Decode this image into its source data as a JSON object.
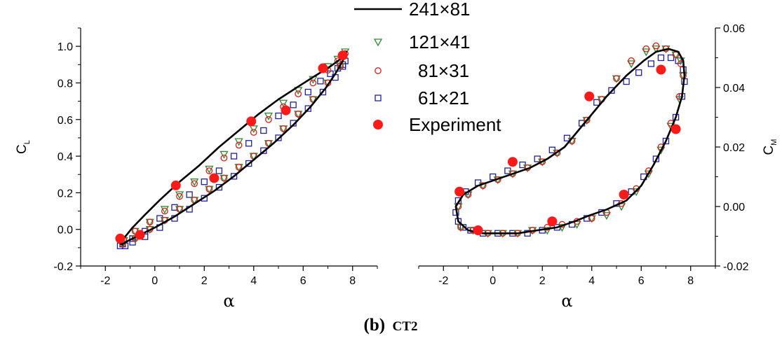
{
  "caption": {
    "label": "(b)",
    "name": "CT2"
  },
  "chart_data": [
    {
      "type": "line",
      "panel": "left",
      "xlabel": "α",
      "ylabel_main": "C",
      "ylabel_sub": "L",
      "xlim": [
        -3,
        9
      ],
      "ylim": [
        -0.2,
        1.1
      ],
      "xticks": [
        -2,
        0,
        2,
        4,
        6,
        8
      ],
      "yticks": [
        -0.2,
        0.0,
        0.2,
        0.4,
        0.6,
        0.8,
        1.0
      ],
      "ytick_labels": [
        "-0.2",
        "0.0",
        "0.2",
        "0.4",
        "0.6",
        "0.8",
        "1.0"
      ],
      "yaxis_side": "left",
      "series": [
        {
          "name": "241×81",
          "style": "line",
          "color": "#000000",
          "x": [
            -1.4,
            -1.3,
            -1.05,
            -0.6,
            0.0,
            0.8,
            1.6,
            2.4,
            3.2,
            4.0,
            4.8,
            5.6,
            6.3,
            6.9,
            7.3,
            7.6,
            7.75,
            7.7,
            7.5,
            7.1,
            6.5,
            5.8,
            5.0,
            4.2,
            3.4,
            2.6,
            1.8,
            1.0,
            0.2,
            -0.4,
            -0.9,
            -1.2,
            -1.38,
            -1.4
          ],
          "y": [
            -0.08,
            -0.08,
            -0.06,
            -0.03,
            0.01,
            0.07,
            0.14,
            0.21,
            0.29,
            0.38,
            0.47,
            0.57,
            0.67,
            0.77,
            0.85,
            0.92,
            0.97,
            0.96,
            0.93,
            0.89,
            0.84,
            0.78,
            0.71,
            0.63,
            0.54,
            0.45,
            0.35,
            0.26,
            0.16,
            0.08,
            0.01,
            -0.04,
            -0.07,
            -0.08
          ]
        },
        {
          "name": "121×41",
          "style": "marker",
          "marker": "triangle-down",
          "color": "#2e8b2e",
          "x": [
            -1.3,
            -0.8,
            -0.2,
            0.4,
            1.0,
            1.6,
            2.2,
            2.8,
            3.4,
            4.0,
            4.6,
            5.2,
            5.8,
            6.4,
            7.0,
            7.5,
            7.7,
            7.4,
            7.0,
            6.4,
            5.8,
            5.2,
            4.6,
            4.0,
            3.4,
            2.8,
            2.2,
            1.6,
            1.0,
            0.4,
            -0.2,
            -0.8,
            -1.25
          ],
          "y": [
            -0.08,
            -0.05,
            0.0,
            0.05,
            0.11,
            0.16,
            0.22,
            0.28,
            0.34,
            0.4,
            0.47,
            0.55,
            0.63,
            0.71,
            0.8,
            0.89,
            0.97,
            0.93,
            0.89,
            0.82,
            0.76,
            0.69,
            0.62,
            0.55,
            0.48,
            0.41,
            0.33,
            0.26,
            0.19,
            0.11,
            0.04,
            -0.01,
            -0.06
          ]
        },
        {
          "name": "81×31",
          "style": "marker",
          "marker": "circle-open",
          "color": "#e31a1a",
          "x": [
            -1.3,
            -0.8,
            -0.2,
            0.4,
            1.0,
            1.6,
            2.2,
            2.8,
            3.4,
            4.0,
            4.6,
            5.2,
            5.8,
            6.4,
            7.0,
            7.5,
            7.7,
            7.4,
            7.0,
            6.4,
            5.8,
            5.2,
            4.6,
            4.0,
            3.4,
            2.8,
            2.2,
            1.6,
            1.0,
            0.4,
            -0.2,
            -0.8,
            -1.25
          ],
          "y": [
            -0.08,
            -0.05,
            0.0,
            0.05,
            0.11,
            0.16,
            0.22,
            0.28,
            0.34,
            0.4,
            0.47,
            0.55,
            0.63,
            0.71,
            0.8,
            0.89,
            0.96,
            0.92,
            0.87,
            0.8,
            0.74,
            0.67,
            0.6,
            0.53,
            0.46,
            0.39,
            0.32,
            0.25,
            0.18,
            0.1,
            0.04,
            -0.01,
            -0.06
          ]
        },
        {
          "name": "61×21",
          "style": "marker",
          "marker": "square-open",
          "color": "#1f1f9e",
          "x": [
            -1.4,
            -1.2,
            -0.9,
            -0.4,
            0.2,
            0.8,
            1.4,
            2.0,
            2.6,
            3.2,
            3.8,
            4.4,
            5.0,
            5.6,
            6.2,
            6.8,
            7.3,
            7.6,
            7.7,
            7.6,
            7.4,
            7.1,
            6.7,
            6.2,
            5.6,
            5.0,
            4.4,
            3.8,
            3.2,
            2.6,
            2.0,
            1.4,
            0.8,
            0.2,
            -0.4,
            -0.9,
            -1.3
          ],
          "y": [
            -0.09,
            -0.09,
            -0.07,
            -0.04,
            0.01,
            0.06,
            0.11,
            0.17,
            0.23,
            0.29,
            0.36,
            0.43,
            0.5,
            0.58,
            0.66,
            0.75,
            0.83,
            0.89,
            0.92,
            0.9,
            0.88,
            0.85,
            0.81,
            0.75,
            0.68,
            0.62,
            0.54,
            0.47,
            0.4,
            0.32,
            0.26,
            0.19,
            0.12,
            0.06,
            -0.01,
            -0.05,
            -0.08
          ]
        },
        {
          "name": "Experiment",
          "style": "marker",
          "marker": "circle-filled",
          "color": "#ff1a1a",
          "x": [
            -1.4,
            -0.6,
            0.85,
            2.4,
            3.9,
            5.3,
            6.8,
            7.6
          ],
          "y": [
            -0.05,
            -0.03,
            0.24,
            0.28,
            0.59,
            0.65,
            0.88,
            0.95
          ]
        }
      ]
    },
    {
      "type": "line",
      "panel": "right",
      "xlabel": "α",
      "ylabel_main": "C",
      "ylabel_sub": "M",
      "xlim": [
        -3,
        9
      ],
      "ylim": [
        -0.02,
        0.06
      ],
      "xticks": [
        -2,
        0,
        2,
        4,
        6,
        8
      ],
      "yticks": [
        -0.02,
        0.0,
        0.02,
        0.04,
        0.06
      ],
      "ytick_labels": [
        "-0.02",
        "0.00",
        "0.02",
        "0.04",
        "0.06"
      ],
      "yaxis_side": "right",
      "series": [
        {
          "name": "241×81",
          "style": "line",
          "color": "#000000",
          "x": [
            -1.5,
            -1.4,
            -1.0,
            -0.4,
            0.3,
            1.0,
            1.8,
            2.6,
            3.3,
            3.9,
            4.6,
            5.4,
            6.0,
            6.5,
            7.0,
            7.4,
            7.65,
            7.75,
            7.7,
            7.5,
            7.1,
            6.6,
            6.1,
            5.4,
            4.6,
            3.7,
            2.9,
            2.2,
            1.5,
            0.8,
            0.1,
            -0.6,
            -1.2,
            -1.5
          ],
          "y": [
            0.0,
            -0.005,
            -0.008,
            -0.009,
            -0.009,
            -0.009,
            -0.008,
            -0.007,
            -0.005,
            -0.003,
            -0.001,
            0.002,
            0.007,
            0.014,
            0.022,
            0.03,
            0.037,
            0.044,
            0.049,
            0.052,
            0.053,
            0.052,
            0.049,
            0.044,
            0.037,
            0.028,
            0.02,
            0.016,
            0.013,
            0.011,
            0.009,
            0.007,
            0.004,
            0.0
          ]
        },
        {
          "name": "121×41",
          "style": "marker",
          "marker": "triangle-down",
          "color": "#2e8b2e",
          "x": [
            -1.3,
            -0.8,
            -0.2,
            0.4,
            1.0,
            1.6,
            2.2,
            2.8,
            3.4,
            4.0,
            4.6,
            5.2,
            5.8,
            6.3,
            6.8,
            7.2,
            7.55,
            7.7,
            7.6,
            7.4,
            7.0,
            6.6,
            6.2,
            5.6,
            5.0,
            4.4,
            3.8,
            3.2,
            2.6,
            2.0,
            1.4,
            0.8,
            0.2,
            -0.4,
            -1.0,
            -1.4
          ],
          "y": [
            -0.007,
            -0.008,
            -0.009,
            -0.009,
            -0.009,
            -0.008,
            -0.008,
            -0.007,
            -0.006,
            -0.004,
            -0.003,
            0.0,
            0.005,
            0.011,
            0.019,
            0.027,
            0.036,
            0.044,
            0.049,
            0.051,
            0.053,
            0.053,
            0.052,
            0.048,
            0.043,
            0.036,
            0.029,
            0.022,
            0.018,
            0.015,
            0.013,
            0.011,
            0.009,
            0.007,
            0.004,
            0.0
          ]
        },
        {
          "name": "81×31",
          "style": "marker",
          "marker": "circle-open",
          "color": "#e31a1a",
          "x": [
            -1.3,
            -0.8,
            -0.2,
            0.4,
            1.0,
            1.6,
            2.2,
            2.8,
            3.4,
            4.0,
            4.6,
            5.2,
            5.8,
            6.3,
            6.8,
            7.2,
            7.55,
            7.7,
            7.6,
            7.4,
            7.0,
            6.6,
            6.2,
            5.6,
            5.0,
            4.4,
            3.8,
            3.2,
            2.6,
            2.0,
            1.4,
            0.8,
            0.2,
            -0.4,
            -1.0,
            -1.4
          ],
          "y": [
            -0.007,
            -0.008,
            -0.009,
            -0.009,
            -0.009,
            -0.008,
            -0.007,
            -0.006,
            -0.005,
            -0.004,
            -0.002,
            0.001,
            0.006,
            0.012,
            0.02,
            0.028,
            0.037,
            0.044,
            0.048,
            0.051,
            0.053,
            0.054,
            0.053,
            0.049,
            0.043,
            0.036,
            0.029,
            0.022,
            0.018,
            0.015,
            0.013,
            0.011,
            0.009,
            0.007,
            0.004,
            0.0
          ]
        },
        {
          "name": "61×21",
          "style": "marker",
          "marker": "square-open",
          "color": "#1f1f9e",
          "x": [
            -1.5,
            -1.4,
            -1.2,
            -0.9,
            -0.4,
            0.2,
            0.8,
            1.4,
            2.0,
            2.6,
            3.2,
            3.8,
            4.4,
            5.0,
            5.6,
            6.1,
            6.6,
            7.0,
            7.4,
            7.65,
            7.75,
            7.7,
            7.5,
            7.2,
            6.8,
            6.4,
            5.9,
            5.4,
            4.8,
            4.2,
            3.6,
            3.0,
            2.4,
            1.8,
            1.2,
            0.6,
            0.0,
            -0.6,
            -1.1,
            -1.4
          ],
          "y": [
            -0.002,
            -0.005,
            -0.007,
            -0.008,
            -0.009,
            -0.009,
            -0.009,
            -0.009,
            -0.008,
            -0.007,
            -0.006,
            -0.004,
            -0.002,
            0.001,
            0.005,
            0.01,
            0.016,
            0.022,
            0.03,
            0.037,
            0.042,
            0.046,
            0.049,
            0.05,
            0.05,
            0.048,
            0.045,
            0.042,
            0.039,
            0.035,
            0.028,
            0.023,
            0.019,
            0.016,
            0.014,
            0.012,
            0.01,
            0.008,
            0.005,
            0.002
          ]
        },
        {
          "name": "Experiment",
          "style": "marker",
          "marker": "circle-filled",
          "color": "#ff1a1a",
          "x": [
            -1.35,
            -0.6,
            0.8,
            2.4,
            3.9,
            5.3,
            6.8,
            7.4
          ],
          "y": [
            0.005,
            -0.008,
            0.015,
            -0.005,
            0.037,
            0.004,
            0.046,
            0.026
          ]
        }
      ]
    }
  ]
}
